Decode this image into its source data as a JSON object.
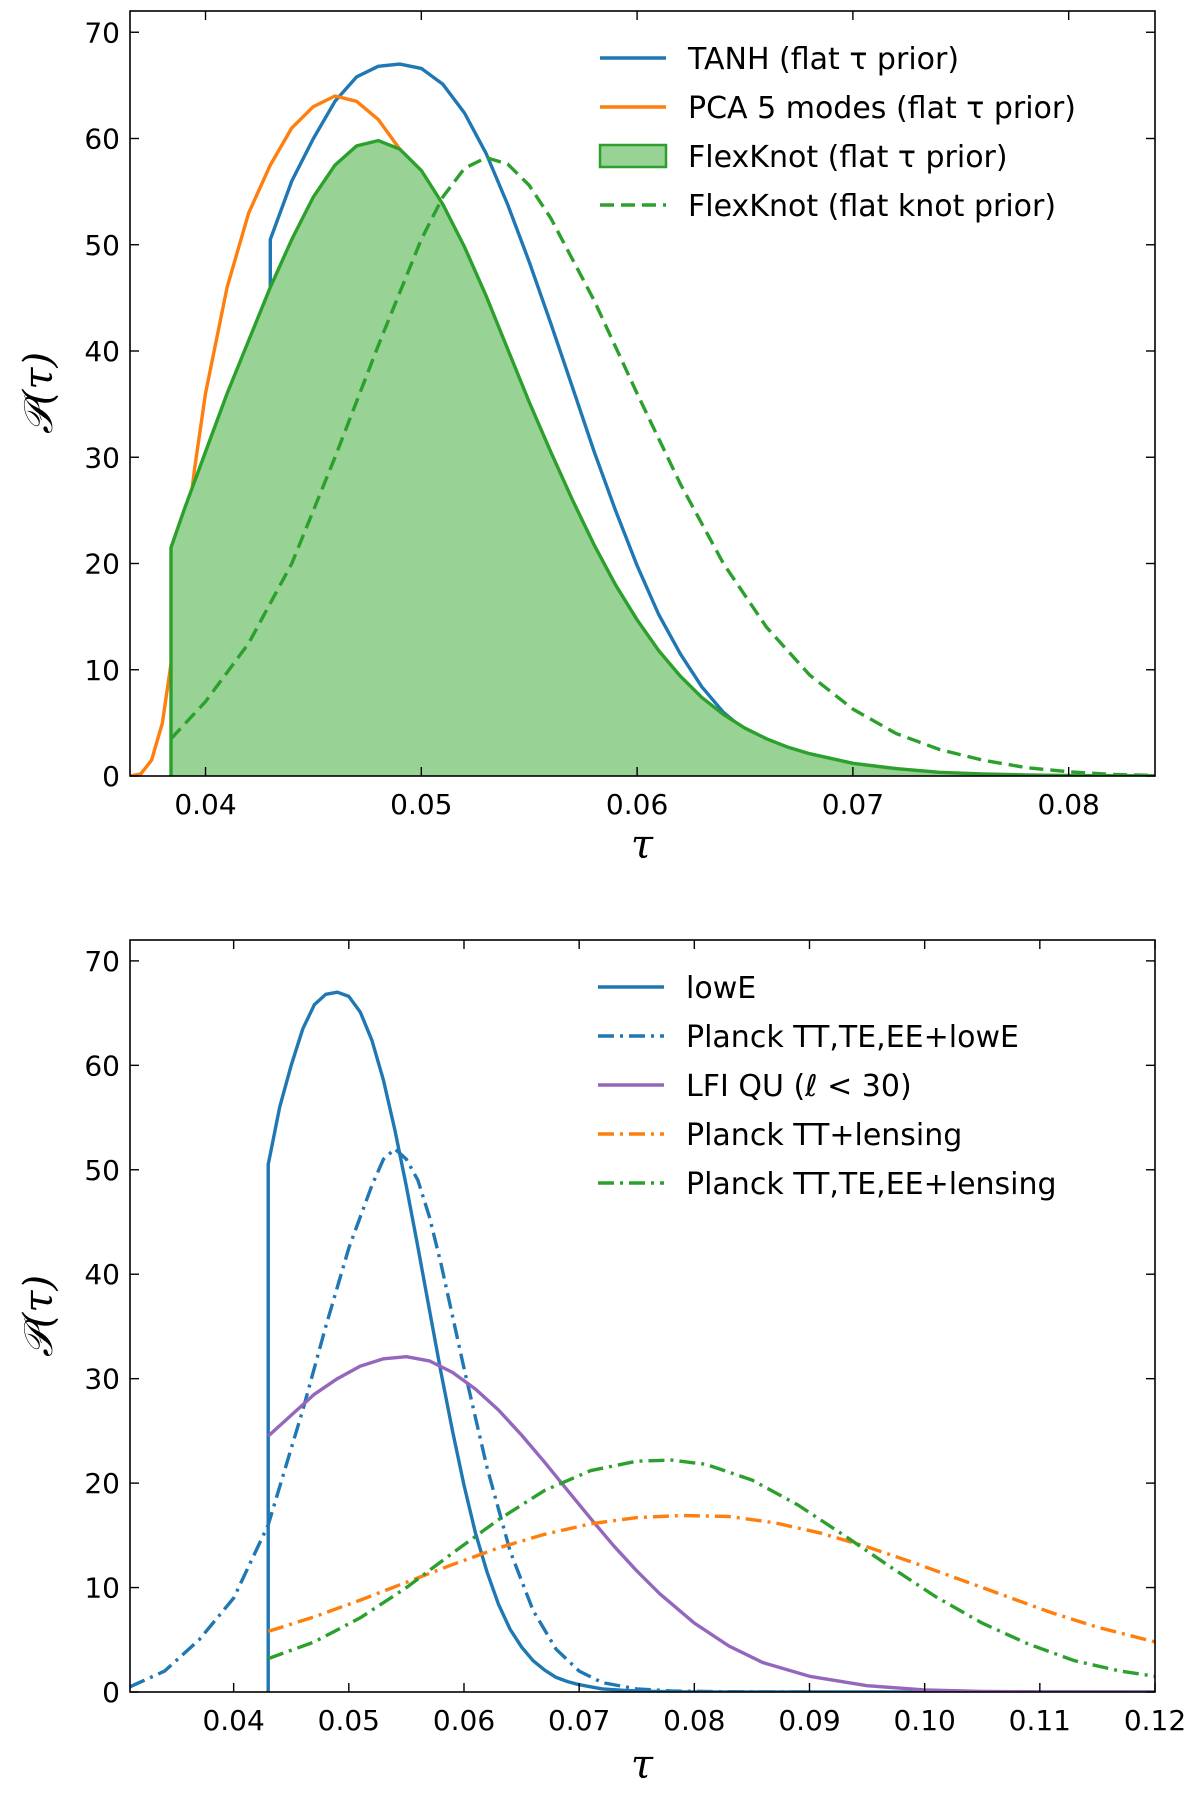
{
  "chart_data": [
    {
      "type": "line",
      "xlabel": "τ",
      "ylabel": "𝒫(τ)",
      "xlim": [
        0.0365,
        0.084
      ],
      "ylim": [
        0,
        72
      ],
      "xticks": [
        0.04,
        0.05,
        0.06,
        0.07,
        0.08
      ],
      "xtick_labels": [
        "0.04",
        "0.05",
        "0.06",
        "0.07",
        "0.08"
      ],
      "yticks": [
        0,
        10,
        20,
        30,
        40,
        50,
        60,
        70
      ],
      "ytick_labels": [
        "0",
        "10",
        "20",
        "30",
        "40",
        "50",
        "60",
        "70"
      ],
      "legend": "top-right",
      "grid": false,
      "series": [
        {
          "name": "TANH (flat τ prior)",
          "style": "solid",
          "color": "#1f77b4",
          "fill": false,
          "x": [
            0.043,
            0.043,
            0.044,
            0.045,
            0.046,
            0.047,
            0.048,
            0.049,
            0.05,
            0.051,
            0.052,
            0.053,
            0.054,
            0.055,
            0.056,
            0.057,
            0.058,
            0.059,
            0.06,
            0.061,
            0.062,
            0.063,
            0.064,
            0.065,
            0.066,
            0.067,
            0.068,
            0.069,
            0.07,
            0.072,
            0.074,
            0.076,
            0.078,
            0.08,
            0.084
          ],
          "y": [
            0,
            50.5,
            56.0,
            60.0,
            63.5,
            65.8,
            66.8,
            67.0,
            66.6,
            65.1,
            62.4,
            58.6,
            53.8,
            48.4,
            42.6,
            36.6,
            30.6,
            25.0,
            19.8,
            15.2,
            11.5,
            8.4,
            6.0,
            4.3,
            3.0,
            2.1,
            1.4,
            1.0,
            0.7,
            0.3,
            0.15,
            0.07,
            0.03,
            0.0,
            0.0
          ]
        },
        {
          "name": "PCA 5 modes (flat τ prior)",
          "style": "solid",
          "color": "#ff7f0e",
          "fill": false,
          "x": [
            0.0365,
            0.037,
            0.0375,
            0.038,
            0.0385,
            0.039,
            0.0395,
            0.04,
            0.041,
            0.042,
            0.043,
            0.044,
            0.045,
            0.046,
            0.047,
            0.048,
            0.049,
            0.05,
            0.051,
            0.052,
            0.053,
            0.054,
            0.055,
            0.056,
            0.057,
            0.058,
            0.059,
            0.06,
            0.061,
            0.062,
            0.063,
            0.064,
            0.065,
            0.066,
            0.067,
            0.068,
            0.07,
            0.072,
            0.074,
            0.076,
            0.078,
            0.08,
            0.084
          ],
          "y": [
            0.0,
            0.2,
            1.5,
            5.0,
            12.0,
            21.0,
            29.0,
            36.0,
            46.0,
            53.0,
            57.5,
            61.0,
            63.0,
            64.0,
            63.5,
            61.8,
            59.0,
            55.0,
            50.0,
            44.5,
            39.0,
            33.5,
            28.5,
            24.0,
            19.8,
            16.2,
            13.2,
            10.6,
            8.5,
            6.8,
            5.3,
            4.1,
            3.2,
            2.5,
            1.9,
            1.4,
            0.8,
            0.4,
            0.2,
            0.1,
            0.05,
            0.02,
            0.0
          ]
        },
        {
          "name": "FlexKnot (flat τ prior)",
          "style": "solid",
          "color": "#2ca02c",
          "fill": true,
          "fill_color": "#98d294",
          "x": [
            0.0384,
            0.0384,
            0.039,
            0.04,
            0.041,
            0.042,
            0.043,
            0.044,
            0.045,
            0.046,
            0.047,
            0.048,
            0.049,
            0.05,
            0.051,
            0.052,
            0.053,
            0.054,
            0.055,
            0.056,
            0.057,
            0.058,
            0.059,
            0.06,
            0.061,
            0.062,
            0.063,
            0.064,
            0.065,
            0.066,
            0.067,
            0.068,
            0.07,
            0.072,
            0.074,
            0.076,
            0.078,
            0.08,
            0.082,
            0.084
          ],
          "y": [
            0,
            21.5,
            25.0,
            30.5,
            36.0,
            41.0,
            46.0,
            50.5,
            54.5,
            57.5,
            59.3,
            59.8,
            59.0,
            57.0,
            53.8,
            49.8,
            45.2,
            40.2,
            35.2,
            30.5,
            26.0,
            21.8,
            18.0,
            14.7,
            11.8,
            9.4,
            7.4,
            5.8,
            4.5,
            3.5,
            2.7,
            2.1,
            1.2,
            0.7,
            0.35,
            0.2,
            0.1,
            0.05,
            0.02,
            0.0
          ]
        },
        {
          "name": "FlexKnot (flat knot prior)",
          "style": "dashed",
          "color": "#2ca02c",
          "fill": false,
          "x": [
            0.0384,
            0.04,
            0.042,
            0.044,
            0.046,
            0.048,
            0.05,
            0.051,
            0.052,
            0.053,
            0.054,
            0.055,
            0.056,
            0.058,
            0.06,
            0.062,
            0.064,
            0.066,
            0.068,
            0.07,
            0.072,
            0.074,
            0.076,
            0.078,
            0.08,
            0.082,
            0.084
          ],
          "y": [
            3.5,
            7.0,
            12.5,
            20.0,
            30.0,
            40.5,
            50.5,
            54.5,
            57.2,
            58.2,
            57.6,
            55.6,
            52.5,
            44.8,
            36.0,
            27.5,
            20.0,
            14.0,
            9.5,
            6.3,
            4.0,
            2.5,
            1.5,
            0.8,
            0.4,
            0.15,
            0.05
          ]
        }
      ]
    },
    {
      "type": "line",
      "xlabel": "τ",
      "ylabel": "𝒫(τ)",
      "xlim": [
        0.031,
        0.12
      ],
      "ylim": [
        0,
        72
      ],
      "xticks": [
        0.04,
        0.05,
        0.06,
        0.07,
        0.08,
        0.09,
        0.1,
        0.11,
        0.12
      ],
      "xtick_labels": [
        "0.04",
        "0.05",
        "0.06",
        "0.07",
        "0.08",
        "0.09",
        "0.10",
        "0.11",
        "0.12"
      ],
      "yticks": [
        0,
        10,
        20,
        30,
        40,
        50,
        60,
        70
      ],
      "ytick_labels": [
        "0",
        "10",
        "20",
        "30",
        "40",
        "50",
        "60",
        "70"
      ],
      "legend": "top-right",
      "grid": false,
      "series": [
        {
          "name": "lowE",
          "style": "solid",
          "color": "#1f77b4",
          "x": [
            0.043,
            0.043,
            0.044,
            0.045,
            0.046,
            0.047,
            0.048,
            0.049,
            0.05,
            0.051,
            0.052,
            0.053,
            0.054,
            0.055,
            0.056,
            0.057,
            0.058,
            0.059,
            0.06,
            0.061,
            0.062,
            0.063,
            0.064,
            0.065,
            0.066,
            0.067,
            0.068,
            0.069,
            0.07,
            0.072,
            0.074,
            0.076,
            0.078,
            0.08,
            0.12
          ],
          "y": [
            0,
            50.5,
            56.0,
            60.0,
            63.5,
            65.8,
            66.8,
            67.0,
            66.6,
            65.1,
            62.4,
            58.6,
            53.8,
            48.4,
            42.6,
            36.6,
            30.6,
            25.0,
            19.8,
            15.2,
            11.5,
            8.4,
            6.0,
            4.3,
            3.0,
            2.1,
            1.4,
            1.0,
            0.7,
            0.3,
            0.15,
            0.07,
            0.03,
            0.0,
            0.0
          ]
        },
        {
          "name": "Planck TT,TE,EE+lowE",
          "style": "dashdot",
          "color": "#1f77b4",
          "x": [
            0.031,
            0.034,
            0.037,
            0.04,
            0.043,
            0.046,
            0.048,
            0.05,
            0.052,
            0.053,
            0.054,
            0.055,
            0.056,
            0.057,
            0.058,
            0.06,
            0.062,
            0.064,
            0.066,
            0.068,
            0.07,
            0.072,
            0.075,
            0.078,
            0.082,
            0.086,
            0.09
          ],
          "y": [
            0.5,
            2.0,
            5.0,
            9.0,
            16.0,
            27.0,
            35.0,
            42.5,
            48.5,
            51.0,
            52.0,
            51.0,
            49.0,
            45.5,
            41.0,
            31.0,
            21.5,
            13.5,
            7.8,
            4.1,
            2.0,
            0.9,
            0.3,
            0.1,
            0.03,
            0.01,
            0.0
          ]
        },
        {
          "name": "LFI QU (ℓ < 30)",
          "style": "solid",
          "color": "#9467bd",
          "x": [
            0.043,
            0.045,
            0.047,
            0.049,
            0.051,
            0.053,
            0.055,
            0.057,
            0.059,
            0.061,
            0.063,
            0.065,
            0.067,
            0.069,
            0.071,
            0.073,
            0.075,
            0.077,
            0.08,
            0.083,
            0.086,
            0.09,
            0.095,
            0.1,
            0.105,
            0.11,
            0.12
          ],
          "y": [
            24.5,
            26.5,
            28.5,
            30.0,
            31.2,
            31.9,
            32.1,
            31.7,
            30.6,
            29.0,
            27.0,
            24.6,
            22.0,
            19.3,
            16.6,
            14.0,
            11.6,
            9.4,
            6.6,
            4.4,
            2.8,
            1.5,
            0.6,
            0.2,
            0.06,
            0.02,
            0.0
          ]
        },
        {
          "name": "Planck TT+lensing",
          "style": "dashdot",
          "color": "#ff7f0e",
          "x": [
            0.043,
            0.047,
            0.051,
            0.055,
            0.059,
            0.063,
            0.067,
            0.071,
            0.075,
            0.079,
            0.083,
            0.087,
            0.091,
            0.095,
            0.099,
            0.103,
            0.107,
            0.111,
            0.115,
            0.12
          ],
          "y": [
            5.8,
            7.2,
            8.8,
            10.5,
            12.2,
            13.8,
            15.1,
            16.1,
            16.7,
            16.9,
            16.8,
            16.2,
            15.2,
            13.9,
            12.4,
            10.8,
            9.2,
            7.6,
            6.2,
            4.8
          ]
        },
        {
          "name": "Planck TT,TE,EE+lensing",
          "style": "dashdot",
          "color": "#2ca02c",
          "x": [
            0.043,
            0.047,
            0.051,
            0.055,
            0.059,
            0.063,
            0.067,
            0.071,
            0.075,
            0.078,
            0.081,
            0.085,
            0.089,
            0.093,
            0.097,
            0.101,
            0.105,
            0.109,
            0.113,
            0.117,
            0.12
          ],
          "y": [
            3.2,
            4.8,
            7.1,
            10.0,
            13.3,
            16.5,
            19.3,
            21.2,
            22.1,
            22.2,
            21.8,
            20.3,
            17.9,
            15.0,
            12.0,
            9.1,
            6.6,
            4.6,
            3.0,
            2.0,
            1.5
          ]
        }
      ]
    }
  ]
}
